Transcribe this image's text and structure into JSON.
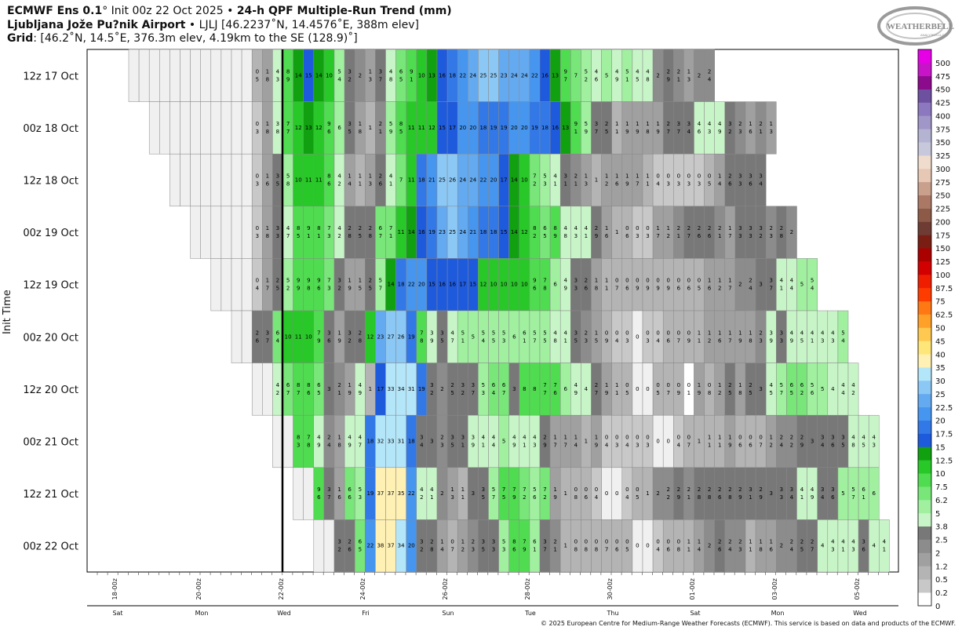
{
  "header": {
    "line1_model": "ECMWF Ens 0.1",
    "line1_deg": "°",
    "line1_init": " Init 00z 22 Oct 2025",
    "line1_sep": " • ",
    "line1_product": "24-h QPF Multiple-Run Trend (mm)",
    "line2_site": "Ljubljana Jože Pu?nik Airport",
    "line2_sep": " • ",
    "line2_info": "LJLJ [46.2237˚N, 14.4576˚E, 388m elev]",
    "line3_label": "Grid",
    "line3_info": ": [46.2˚N, 14.5˚E, 376.3m elev, 4.19km to the SE (128.9)˚]"
  },
  "logo": {
    "text": "WEATHERBELL",
    "subtext": "ANALYTICS LLC"
  },
  "footer": "© 2025 European Centre for Medium-Range Weather Forecasts (ECMWF). This service is based on data and products of the ECMWF.",
  "colors": {
    "grid_line": "#888888",
    "now_line": "#000000",
    "frame": "#000000"
  },
  "chart_data": {
    "type": "heatmap",
    "title": "24-h QPF Multiple-Run Trend (mm)",
    "ylabel": "Init Time",
    "now_marker": "22-00z",
    "init_times": [
      "12z 17 Oct",
      "00z 18 Oct",
      "12z 18 Oct",
      "00z 19 Oct",
      "12z 19 Oct",
      "00z 20 Oct",
      "12z 20 Oct",
      "00z 21 Oct",
      "12z 21 Oct",
      "00z 22 Oct"
    ],
    "x_ticks": [
      "18-00z",
      "20-00z",
      "22-00z",
      "24-00z",
      "26-00z",
      "28-00z",
      "30-00z",
      "01-00z",
      "03-00z",
      "05-00z"
    ],
    "x_days": [
      "Sat",
      "Mon",
      "Wed",
      "Fri",
      "Sun",
      "Tue",
      "Thu",
      "Sat",
      "Mon",
      "Wed"
    ],
    "rows": [
      {
        "start": 0,
        "values": [
          "0",
          "0",
          "0",
          "0",
          "0",
          "0",
          "0",
          "0",
          "0",
          "0",
          "0",
          "0",
          "0.5",
          "1.8",
          "4.3",
          "8.9",
          "14",
          "15",
          "14",
          "10",
          "5.4",
          "3.2",
          "2",
          "1.3",
          "3.7",
          "4.8",
          "6.5",
          "9.1",
          "10",
          "13",
          "16",
          "18",
          "22",
          "24",
          "25",
          "25",
          "23",
          "24",
          "24",
          "22",
          "16",
          "13",
          "9.7",
          "7",
          "5.2",
          "4.6",
          "5",
          "4.9",
          "5.1",
          "4.5",
          "4.8",
          "2",
          "2.9",
          "2.1",
          "1.3",
          "2",
          "2.4"
        ]
      },
      {
        "start": 2,
        "values": [
          "0",
          "0",
          "0",
          "0",
          "0",
          "0",
          "0",
          "0",
          "0",
          "0",
          "0.3",
          "1.8",
          "3.8",
          "7.7",
          "12",
          "13",
          "12",
          "9.6",
          "6",
          "3.5",
          "1.8",
          "1",
          "2.1",
          "5.9",
          "8.5",
          "11",
          "11",
          "12",
          "15",
          "17",
          "20",
          "20",
          "18",
          "19",
          "19",
          "20",
          "20",
          "19",
          "18",
          "16",
          "13",
          "9.1",
          "5.9",
          "3.7",
          "2.5",
          "1.1",
          "1.9",
          "1.9",
          "1.8",
          "1.9",
          "2.7",
          "3.7",
          "3.4",
          "4.6",
          "4.3",
          "4.9",
          "3.2",
          "2.3",
          "1.6",
          "2.1",
          "1.3"
        ]
      },
      {
        "start": 4,
        "values": [
          "0",
          "0",
          "0",
          "0",
          "0",
          "0",
          "0",
          "0",
          "0.3",
          "1.6",
          "3.5",
          "5.8",
          "10",
          "11",
          "11",
          "8.6",
          "4.2",
          "1.4",
          "1.1",
          "1.3",
          "2.6",
          "4.1",
          "7",
          "11",
          "18",
          "21",
          "25",
          "26",
          "24",
          "24",
          "22",
          "20",
          "17",
          "14",
          "10",
          "7.2",
          "5.3",
          "4.1",
          "3.1",
          "2.1",
          "1.3",
          "1",
          "1.2",
          "1.6",
          "1.9",
          "1.7",
          "1.1",
          "0.4",
          "0.3",
          "0.3",
          "0.3",
          "0.3",
          "0.5",
          "1.4",
          "2.6",
          "3.3",
          "3.6",
          "3.4"
        ]
      },
      {
        "start": 6,
        "values": [
          "0",
          "0",
          "0",
          "0",
          "0",
          "0",
          "0.3",
          "1.8",
          "3.3",
          "4.7",
          "8.5",
          "9.1",
          "8.1",
          "7.3",
          "4.2",
          "2.8",
          "2.5",
          "2.8",
          "6.7",
          "7.1",
          "11",
          "14",
          "16",
          "19",
          "23",
          "25",
          "24",
          "21",
          "18",
          "18",
          "15",
          "14",
          "12",
          "8.2",
          "6.5",
          "8.9",
          "4.8",
          "4.3",
          "4.1",
          "2.9",
          "1.6",
          "1",
          "0.6",
          "0.3",
          "0.3",
          "1.7",
          "1.2",
          "2.1",
          "2.7",
          "2.6",
          "2.6",
          "2.1",
          "1.7",
          "3.3",
          "3.3",
          "3.2",
          "2.3",
          "2.8",
          "2"
        ]
      },
      {
        "start": 8,
        "values": [
          "0",
          "0",
          "0",
          "0",
          "0.4",
          "1.7",
          "2.5",
          "5.2",
          "9.9",
          "9.8",
          "9.6",
          "7.3",
          "3.2",
          "1.9",
          "1.5",
          "2.5",
          "5.7",
          "14",
          "18",
          "22",
          "20",
          "15",
          "16",
          "16",
          "17",
          "15",
          "12",
          "10",
          "10",
          "10",
          "10",
          "9.6",
          "7.8",
          "6",
          "4.9",
          "3.3",
          "2.6",
          "1.8",
          "1.1",
          "0.7",
          "0.6",
          "0.9",
          "0.9",
          "0.9",
          "0.9",
          "0.6",
          "0.6",
          "0.5",
          "1.6",
          "1.2",
          "1.7",
          "2",
          "2.4",
          "3",
          "3.7",
          "4.1",
          "4.4",
          "5",
          "5.4"
        ]
      },
      {
        "start": 10,
        "values": [
          "0",
          "0",
          "2.6",
          "3.7",
          "6.4",
          "10",
          "11",
          "10",
          "7.9",
          "3.6",
          "1.9",
          "3.2",
          "2.8",
          "12",
          "23",
          "27",
          "26",
          "19",
          "7.8",
          "3.9",
          "3.5",
          "4.7",
          "5.1",
          "5",
          "5.4",
          "5.5",
          "5.3",
          "6",
          "6.1",
          "5.7",
          "5.5",
          "4.8",
          "4.1",
          "3.5",
          "2.3",
          "1.5",
          "0.9",
          "0.4",
          "0.3",
          "0",
          "0.3",
          "0.4",
          "0.6",
          "0.7",
          "0.9",
          "1.1",
          "1.2",
          "1.6",
          "1.7",
          "1.9",
          "1.8",
          "2.3",
          "3.9",
          "3.3",
          "4.9",
          "4.5",
          "4.1",
          "4.3",
          "4.3",
          "5.4"
        ]
      },
      {
        "start": 12,
        "values": [
          "0",
          "0",
          "4.2",
          "6.7",
          "8.7",
          "8.6",
          "6.5",
          "3",
          "2.1",
          "1.9",
          "4.9",
          "1",
          "17",
          "33",
          "34",
          "31",
          "19",
          "3.2",
          "2",
          "2.5",
          "3.2",
          "3.7",
          "5.3",
          "6.4",
          "6.7",
          "3",
          "8",
          "8",
          "7.7",
          "7.6",
          "6",
          "4.9",
          "4",
          "2.7",
          "1.9",
          "1.1",
          "0.5",
          "0",
          "0",
          "0.5",
          "0.7",
          "0.9",
          "0.1",
          "1.9",
          "0.8",
          "1.2",
          "2.5",
          "1.8",
          "2.5",
          "3",
          "4.5",
          "5.7",
          "6.5",
          "6.2",
          "5.6",
          "5",
          "4",
          "4.4",
          "4.2"
        ]
      },
      {
        "start": 14,
        "values": [
          "0",
          "0",
          "8.3",
          "7.8",
          "4.9",
          "2.4",
          "1.8",
          "4.9",
          "4.7",
          "18",
          "32",
          "33",
          "31",
          "18",
          "3.4",
          "3",
          "2.3",
          "3.5",
          "3.1",
          "3.9",
          "4.1",
          "4.4",
          "5",
          "4.9",
          "4.1",
          "4.3",
          "2.9",
          "1.7",
          "1.7",
          "1.4",
          "1",
          "1.9",
          "0.4",
          "0.3",
          "0.4",
          "0.3",
          "0.3",
          "0",
          "0",
          "0.4",
          "0.7",
          "1",
          "1.1",
          "1.1",
          "1.9",
          "0.6",
          "0.6",
          "0.7",
          "1.2",
          "2.4",
          "2.2",
          "2.9",
          "3",
          "3.4",
          "3.6",
          "3.5",
          "4.8",
          "4.5",
          "4.3"
        ]
      },
      {
        "start": 16,
        "values": [
          "0",
          "0",
          "9.6",
          "3.7",
          "1.6",
          "6.6",
          "5.3",
          "19",
          "37",
          "37",
          "35",
          "22",
          "4.2",
          "4.1",
          "2",
          "1.3",
          "1.1",
          "3",
          "3.5",
          "5.7",
          "7.5",
          "7.9",
          "7.2",
          "5.6",
          "7.2",
          "1.9",
          "1",
          "0.8",
          "0.6",
          "0.4",
          "0",
          "0",
          "0.4",
          "0.5",
          "1",
          "2",
          "2.2",
          "2.9",
          "2.1",
          "2.8",
          "2.8",
          "2.6",
          "2.8",
          "2.9",
          "3.1",
          "2.9",
          "3",
          "3.3",
          "3.4",
          "4.1",
          "4.9",
          "3.4",
          "3.6",
          "5",
          "5.7",
          "6.1",
          "6"
        ]
      },
      {
        "start": 18,
        "values": [
          "0",
          "0",
          "3.2",
          "2.6",
          "6.5",
          "22",
          "38",
          "37",
          "34",
          "20",
          "3.2",
          "2.8",
          "1.4",
          "0.7",
          "1.2",
          "2.3",
          "3.5",
          "3.3",
          "5.3",
          "8.6",
          "7.9",
          "6.1",
          "3.7",
          "2.1",
          "1",
          "0.8",
          "0.8",
          "0.8",
          "0.7",
          "0.6",
          "0.5",
          "0",
          "0",
          "0.4",
          "0.6",
          "0.8",
          "1.1",
          "1.4",
          "2",
          "2.6",
          "2.4",
          "2.3",
          "1.1",
          "1.8",
          "1.6",
          "2",
          "2.4",
          "2.5",
          "2.7",
          "4",
          "4.3",
          "4.1",
          "4.3",
          "3.6",
          "4",
          "4.1",
          "4.4",
          "4.4",
          "4.9",
          "5.3"
        ]
      }
    ],
    "colorbar_labels": [
      "0",
      "0.2",
      "0.5",
      "1.2",
      "2",
      "2.5",
      "3.8",
      "5",
      "6.2",
      "7.5",
      "10",
      "12.5",
      "15",
      "17.5",
      "20",
      "22.5",
      "25",
      "30",
      "35",
      "40",
      "45",
      "50",
      "62.5",
      "75",
      "87.5",
      "100",
      "125",
      "150",
      "175",
      "200",
      "225",
      "250",
      "275",
      "300",
      "325",
      "350",
      "375",
      "400",
      "425",
      "450",
      "475",
      "500"
    ],
    "colorbar_colors": [
      "#ffffff",
      "#c8c8c8",
      "#b4b4b4",
      "#a0a0a0",
      "#8c8c8c",
      "#787878",
      "#c8f5c8",
      "#a0f0a0",
      "#78e678",
      "#50dc50",
      "#28c828",
      "#10a010",
      "#1e5adc",
      "#3278e6",
      "#4696f0",
      "#64aaf0",
      "#8cc8f5",
      "#b4e6fa",
      "#fff0b4",
      "#ffe678",
      "#ffc850",
      "#ffa028",
      "#ff7814",
      "#ff3c00",
      "#f01e00",
      "#d20000",
      "#aa0000",
      "#7a1e14",
      "#6e3c32",
      "#8c5a46",
      "#aa7864",
      "#c8a08c",
      "#e6c8b4",
      "#f0dccd",
      "#c8c8dc",
      "#b4b4d2",
      "#a096c8",
      "#8c78be",
      "#6e50a0",
      "#8c0a8c",
      "#c814c8",
      "#e600e6"
    ]
  }
}
